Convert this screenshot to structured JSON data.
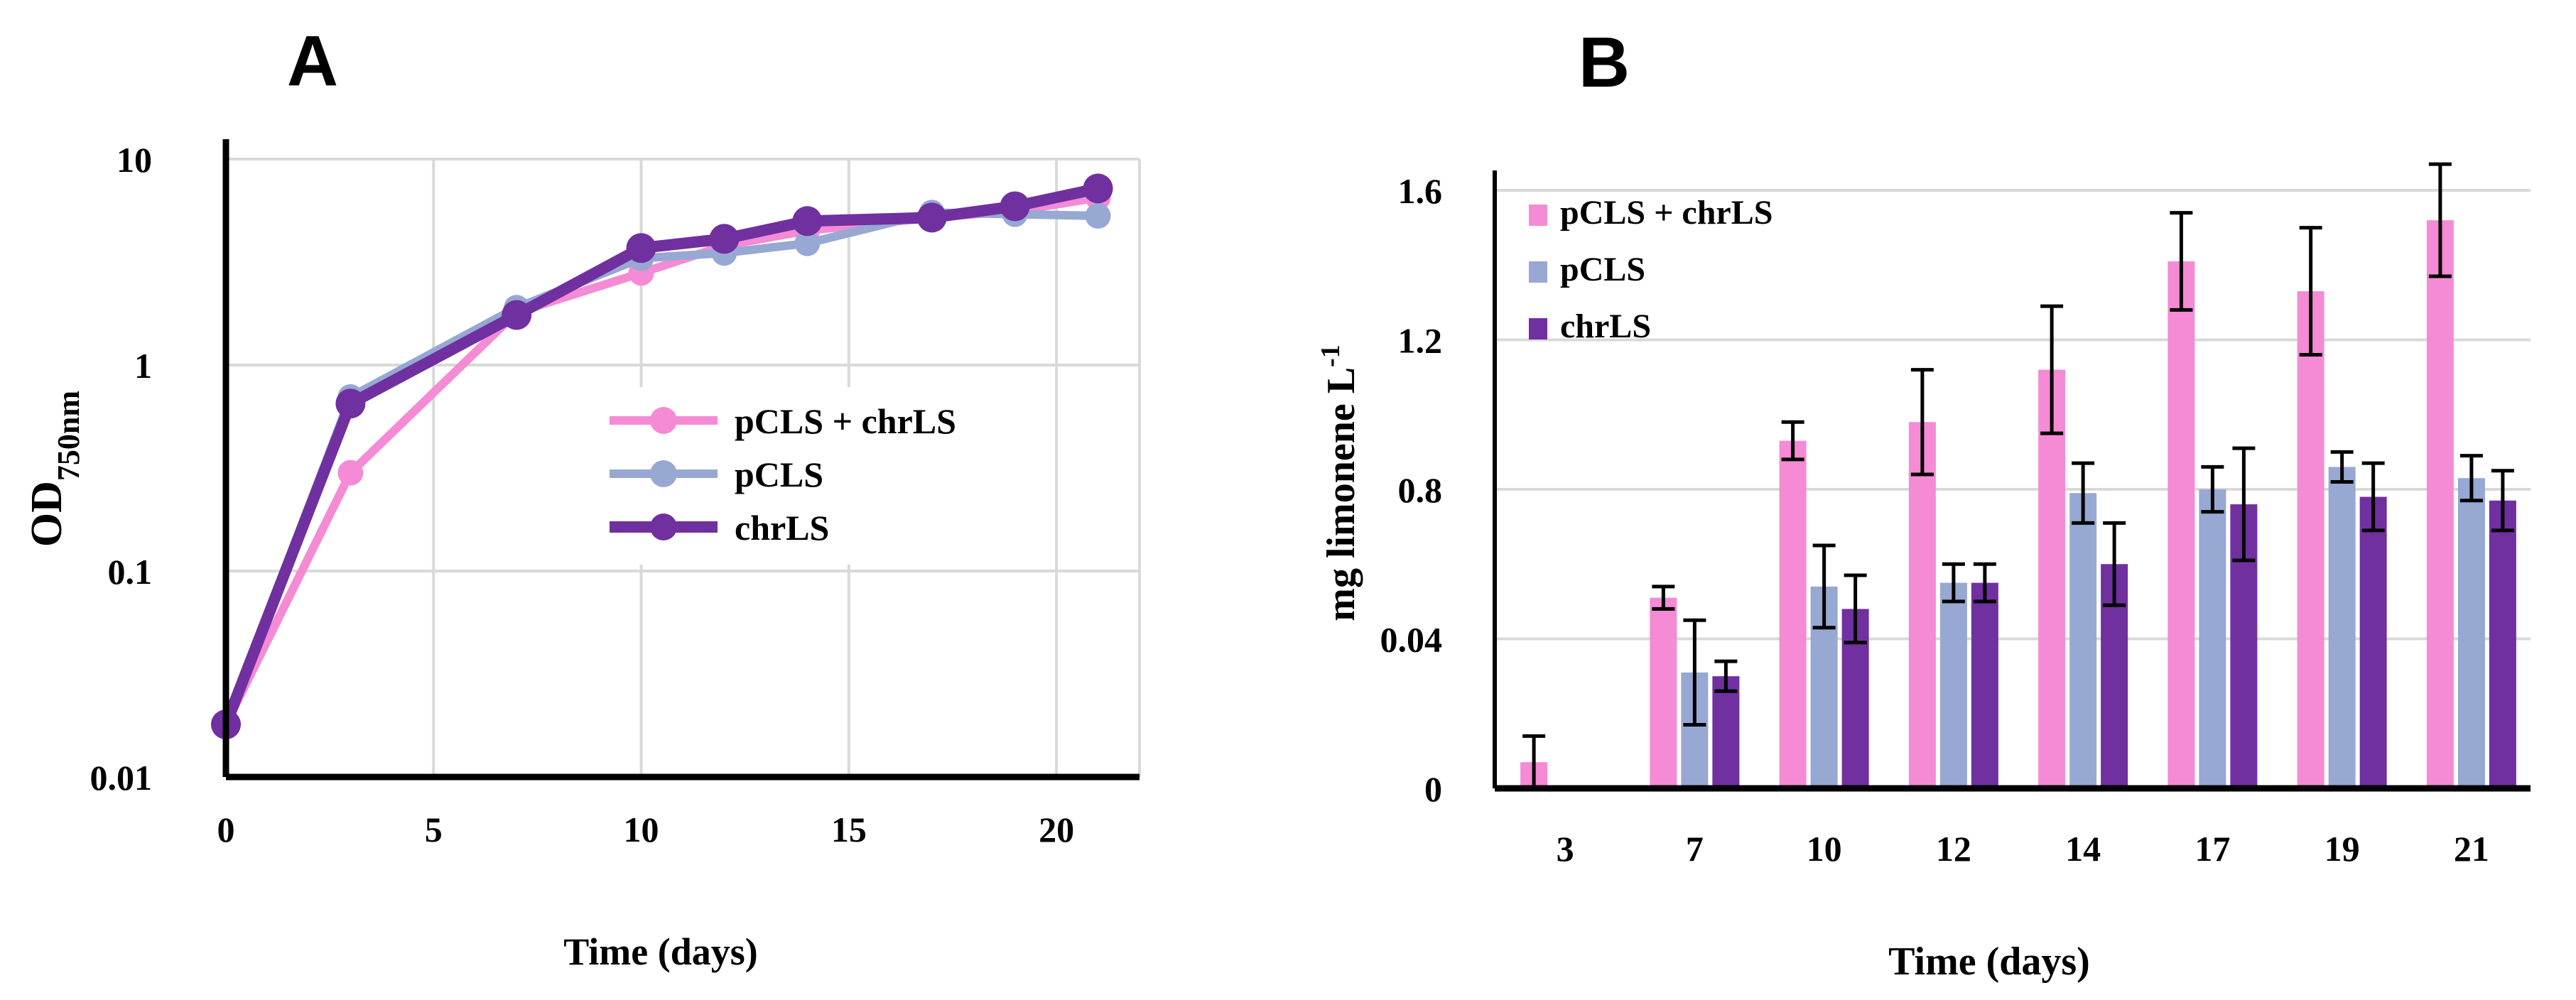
{
  "colors": {
    "pink": "#f48bd4",
    "blue": "#97a8d3",
    "purple": "#7030a0",
    "grid": "#d9d9d9",
    "axis": "#000000",
    "errorbar": "#000000"
  },
  "chart_data": [
    {
      "panel": "A",
      "type": "line",
      "yscale": "log",
      "xlabel": "Time (days)",
      "ylabel_main": "OD",
      "ylabel_sub": "750nm",
      "xlim": [
        0,
        22
      ],
      "ylim": [
        0.01,
        10
      ],
      "xticks": [
        0,
        5,
        10,
        15,
        20
      ],
      "xtick_labels": [
        "0",
        "5",
        "10",
        "15",
        "20"
      ],
      "yticks": [
        0.01,
        0.1,
        1,
        10
      ],
      "ytick_labels": [
        "0.01",
        "0.1",
        "1",
        "10"
      ],
      "grid": true,
      "legend_position": "center-right",
      "series": [
        {
          "name": "pCLS + chrLS",
          "color_key": "pink",
          "x": [
            0,
            3,
            7,
            10,
            12,
            14,
            17,
            19,
            21
          ],
          "y": [
            0.018,
            0.3,
            1.8,
            2.8,
            3.8,
            4.5,
            5.2,
            5.6,
            6.5
          ]
        },
        {
          "name": "pCLS",
          "color_key": "blue",
          "x": [
            0,
            3,
            7,
            10,
            12,
            14,
            17,
            19,
            21
          ],
          "y": [
            0.018,
            0.7,
            1.9,
            3.3,
            3.5,
            3.9,
            5.5,
            5.4,
            5.3
          ]
        },
        {
          "name": "chrLS",
          "color_key": "purple",
          "x": [
            0,
            3,
            7,
            10,
            12,
            14,
            17,
            19,
            21
          ],
          "y": [
            0.018,
            0.65,
            1.75,
            3.7,
            4.1,
            5.0,
            5.2,
            5.9,
            7.2
          ]
        }
      ]
    },
    {
      "panel": "B",
      "type": "bar",
      "xlabel": "Time (days)",
      "ylabel_main": "mg limonene L",
      "ylabel_sup": "-1",
      "categories": [
        "3",
        "7",
        "10",
        "12",
        "14",
        "17",
        "19",
        "21"
      ],
      "ytick_labels": [
        "0",
        "0.04",
        "0.8",
        "1.2",
        "1.6"
      ],
      "ylim": [
        0,
        1.6
      ],
      "grid": true,
      "legend_position": "top-left",
      "series": [
        {
          "name": "pCLS + chrLS",
          "color_key": "pink",
          "values": [
            0.07,
            0.51,
            0.93,
            0.98,
            1.12,
            1.41,
            1.33,
            1.52
          ],
          "errors": [
            0.07,
            0.03,
            0.05,
            0.14,
            0.17,
            0.13,
            0.17,
            0.15
          ]
        },
        {
          "name": "pCLS",
          "color_key": "blue",
          "values": [
            0,
            0.31,
            0.54,
            0.55,
            0.79,
            0.8,
            0.86,
            0.83
          ],
          "errors": [
            0,
            0.14,
            0.11,
            0.05,
            0.08,
            0.06,
            0.04,
            0.06
          ]
        },
        {
          "name": "chrLS",
          "color_key": "purple",
          "values": [
            0,
            0.3,
            0.48,
            0.55,
            0.6,
            0.76,
            0.78,
            0.77
          ],
          "errors": [
            0,
            0.04,
            0.09,
            0.05,
            0.11,
            0.15,
            0.09,
            0.08
          ]
        }
      ]
    }
  ],
  "panels": {
    "a_label": "A",
    "b_label": "B"
  }
}
